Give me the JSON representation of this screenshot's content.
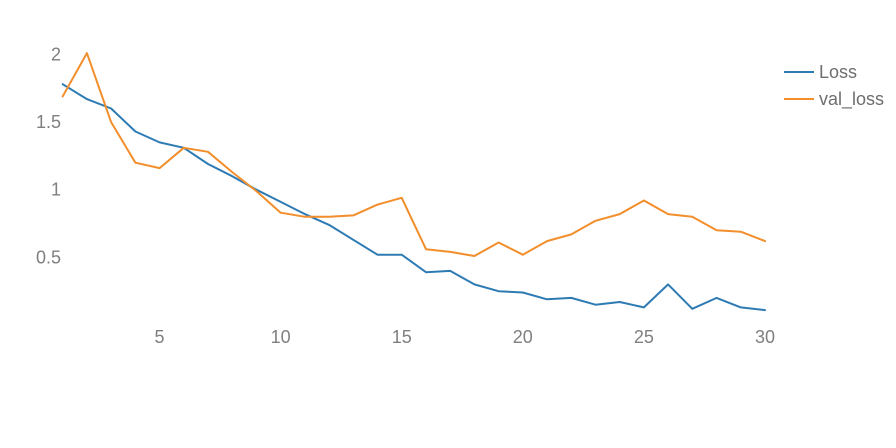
{
  "chart_data": {
    "type": "line",
    "x": [
      1,
      2,
      3,
      4,
      5,
      6,
      7,
      8,
      9,
      10,
      11,
      12,
      13,
      14,
      15,
      16,
      17,
      18,
      19,
      20,
      21,
      22,
      23,
      24,
      25,
      26,
      27,
      28,
      29,
      30
    ],
    "series": [
      {
        "name": "Loss",
        "color": "#2e7bb4",
        "values": [
          1.78,
          1.67,
          1.6,
          1.43,
          1.35,
          1.31,
          1.19,
          1.1,
          1.0,
          0.91,
          0.82,
          0.74,
          0.63,
          0.52,
          0.52,
          0.39,
          0.4,
          0.3,
          0.25,
          0.24,
          0.19,
          0.2,
          0.15,
          0.17,
          0.13,
          0.3,
          0.12,
          0.2,
          0.13,
          0.11
        ]
      },
      {
        "name": "val_loss",
        "color": "#f28e2b",
        "values": [
          1.69,
          2.01,
          1.5,
          1.2,
          1.16,
          1.31,
          1.28,
          1.13,
          0.99,
          0.83,
          0.8,
          0.8,
          0.81,
          0.89,
          0.94,
          0.56,
          0.54,
          0.51,
          0.61,
          0.52,
          0.62,
          0.67,
          0.77,
          0.82,
          0.92,
          0.82,
          0.8,
          0.7,
          0.69,
          0.62
        ]
      }
    ],
    "x_ticks": [
      "5",
      "10",
      "15",
      "20",
      "25",
      "30"
    ],
    "y_ticks": [
      "0.5",
      "1",
      "1.5",
      "2"
    ],
    "xlim": [
      1,
      30
    ],
    "ylim": [
      0.0,
      2.1
    ],
    "grid": false,
    "legend_position": "top-right",
    "title": "",
    "xlabel": "",
    "ylabel": ""
  }
}
